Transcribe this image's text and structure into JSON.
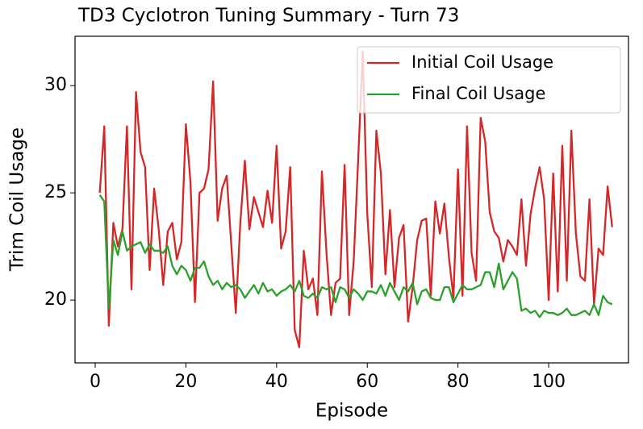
{
  "chart_data": {
    "type": "line",
    "title": "TD3 Cyclotron Tuning Summary - Turn 73",
    "x_label": "Episode",
    "y_label": "Trim Coil Usage",
    "x": [
      1,
      2,
      3,
      4,
      5,
      6,
      7,
      8,
      9,
      10,
      11,
      12,
      13,
      14,
      15,
      16,
      17,
      18,
      19,
      20,
      21,
      22,
      23,
      24,
      25,
      26,
      27,
      28,
      29,
      30,
      31,
      32,
      33,
      34,
      35,
      36,
      37,
      38,
      39,
      40,
      41,
      42,
      43,
      44,
      45,
      46,
      47,
      48,
      49,
      50,
      51,
      52,
      53,
      54,
      55,
      56,
      57,
      58,
      59,
      60,
      61,
      62,
      63,
      64,
      65,
      66,
      67,
      68,
      69,
      70,
      71,
      72,
      73,
      74,
      75,
      76,
      77,
      78,
      79,
      80,
      81,
      82,
      83,
      84,
      85,
      86,
      87,
      88,
      89,
      90,
      91,
      92,
      93,
      94,
      95,
      96,
      97,
      98,
      99,
      100,
      101,
      102,
      103,
      104,
      105,
      106,
      107,
      108,
      109,
      110,
      111,
      112,
      113,
      114
    ],
    "series": [
      {
        "name": "Initial Coil Usage",
        "color": "#d62728",
        "values": [
          25.0,
          28.1,
          18.8,
          23.6,
          22.5,
          23.3,
          28.1,
          20.5,
          29.7,
          26.9,
          26.2,
          21.4,
          25.2,
          23.3,
          20.7,
          23.2,
          23.6,
          21.9,
          22.7,
          28.2,
          25.5,
          19.9,
          25.0,
          25.2,
          26.1,
          30.2,
          23.7,
          25.2,
          25.8,
          22.6,
          19.4,
          23.6,
          26.5,
          23.3,
          24.8,
          24.1,
          23.4,
          25.1,
          23.6,
          27.2,
          22.4,
          23.2,
          26.2,
          18.6,
          17.8,
          22.3,
          20.5,
          21.0,
          19.3,
          26.0,
          22.2,
          19.3,
          20.8,
          21.0,
          26.3,
          19.3,
          21.8,
          26.6,
          31.6,
          24.0,
          20.6,
          27.9,
          25.9,
          21.2,
          24.2,
          20.6,
          22.9,
          23.5,
          19.0,
          20.6,
          22.8,
          23.7,
          23.8,
          20.2,
          24.6,
          23.1,
          24.5,
          22.0,
          20.1,
          26.1,
          20.2,
          28.1,
          22.2,
          20.9,
          28.5,
          27.4,
          24.1,
          23.2,
          22.9,
          21.8,
          22.8,
          22.5,
          22.1,
          24.7,
          21.6,
          24.0,
          25.2,
          26.2,
          24.7,
          20.0,
          25.9,
          20.4,
          27.2,
          20.9,
          27.9,
          23.1,
          21.1,
          20.9,
          24.7,
          19.8,
          22.4,
          22.1,
          25.3,
          23.4
        ]
      },
      {
        "name": "Final Coil Usage",
        "color": "#2ca02c",
        "values": [
          24.9,
          24.6,
          19.6,
          22.8,
          22.1,
          23.2,
          22.3,
          22.5,
          22.6,
          22.7,
          22.2,
          22.6,
          22.3,
          22.3,
          22.2,
          22.5,
          21.6,
          21.2,
          21.6,
          21.4,
          20.9,
          21.5,
          21.5,
          21.8,
          21.1,
          20.7,
          20.9,
          20.5,
          20.8,
          20.6,
          20.7,
          20.5,
          20.1,
          20.4,
          20.7,
          20.3,
          20.8,
          20.4,
          20.5,
          20.2,
          20.4,
          20.5,
          20.7,
          20.4,
          20.9,
          20.2,
          20.1,
          20.3,
          20.1,
          20.6,
          20.5,
          20.6,
          19.9,
          20.6,
          20.5,
          20.1,
          20.5,
          20.3,
          20.0,
          20.4,
          20.4,
          20.3,
          20.7,
          20.2,
          20.8,
          20.4,
          20.0,
          20.6,
          20.4,
          20.8,
          19.8,
          20.4,
          20.5,
          20.1,
          20.0,
          20.0,
          20.6,
          20.6,
          19.9,
          20.3,
          20.7,
          20.5,
          20.5,
          20.6,
          20.7,
          21.3,
          21.3,
          20.6,
          21.7,
          20.5,
          20.9,
          21.3,
          21.0,
          19.5,
          19.6,
          19.4,
          19.5,
          19.2,
          19.5,
          19.4,
          19.4,
          19.3,
          19.4,
          19.6,
          19.3,
          19.3,
          19.4,
          19.5,
          19.3,
          19.8,
          19.3,
          20.2,
          19.9,
          19.8
        ]
      }
    ],
    "xlim": [
      -4.45,
      117.6
    ],
    "ylim": [
      17.07,
      32.3
    ],
    "xticks": [
      0,
      20,
      40,
      60,
      80,
      100
    ],
    "yticks": [
      20,
      25,
      30
    ],
    "legend": "upper right",
    "grid": false
  }
}
